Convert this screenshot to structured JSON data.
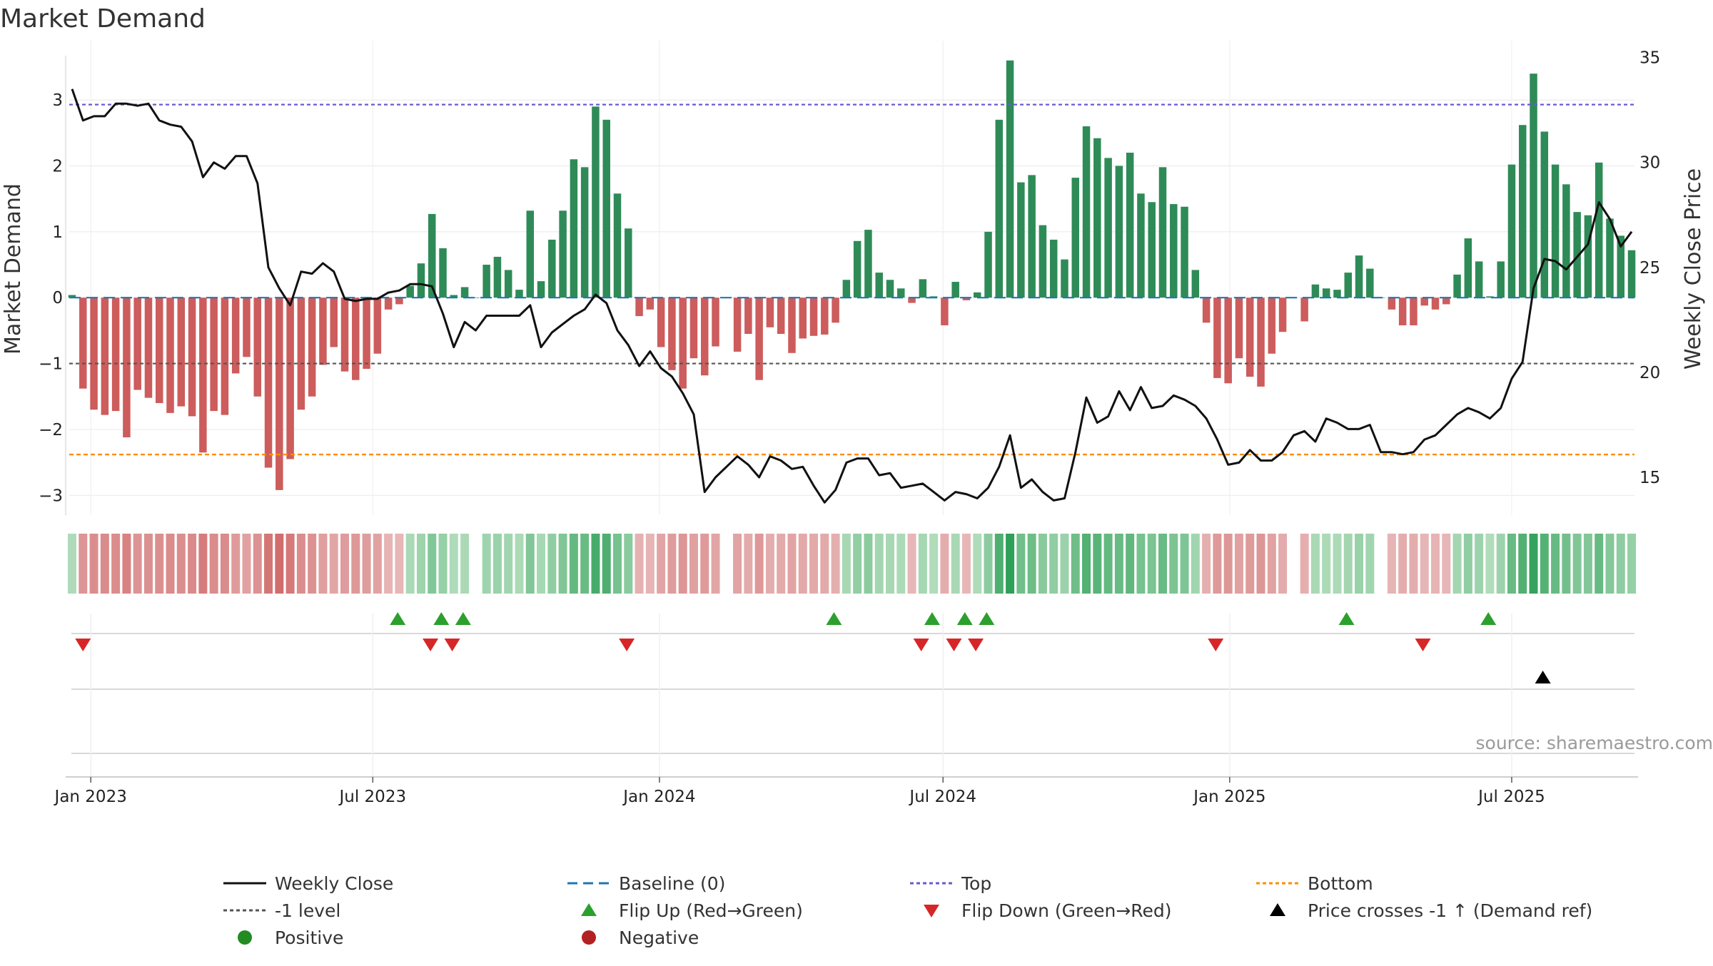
{
  "chart_data": {
    "type": "bar",
    "title": "Market Demand",
    "ylabel": "Market Demand",
    "y2label": "Weekly Close Price",
    "ylim": [
      -3.3,
      3.9
    ],
    "y2lim": [
      13.2,
      35.8
    ],
    "yticks": [
      -3,
      -2,
      -1,
      0,
      1,
      2,
      3
    ],
    "y2ticks": [
      15,
      20,
      25,
      30,
      35
    ],
    "x_start": "2022-12-20",
    "weeks_between_points": 1,
    "xticks": [
      {
        "date": "2023-01-01",
        "label": "Jan 2023"
      },
      {
        "date": "2023-07-01",
        "label": "Jul 2023"
      },
      {
        "date": "2024-01-01",
        "label": "Jan 2024"
      },
      {
        "date": "2024-07-01",
        "label": "Jul 2024"
      },
      {
        "date": "2025-01-01",
        "label": "Jan 2025"
      },
      {
        "date": "2025-07-01",
        "label": "Jul 2025"
      }
    ],
    "reference_lines": {
      "top": 2.93,
      "minus_one": -1.0,
      "bottom": -2.38,
      "baseline": 0
    },
    "series": [
      {
        "name": "Market Demand",
        "values": [
          0.04,
          -1.38,
          -1.7,
          -1.78,
          -1.72,
          -2.12,
          -1.4,
          -1.52,
          -1.6,
          -1.75,
          -1.65,
          -1.8,
          -2.35,
          -1.72,
          -1.78,
          -1.15,
          -0.9,
          -1.5,
          -2.58,
          -2.92,
          -2.45,
          -1.7,
          -1.5,
          -1.02,
          -0.75,
          -1.12,
          -1.25,
          -1.08,
          -0.85,
          -0.18,
          -0.1,
          0.18,
          0.52,
          1.27,
          0.75,
          0.04,
          0.16,
          0.0,
          0.5,
          0.62,
          0.42,
          0.12,
          1.32,
          0.25,
          0.88,
          1.32,
          2.1,
          1.98,
          2.9,
          2.7,
          1.58,
          1.05,
          -0.28,
          -0.18,
          -0.75,
          -1.1,
          -1.38,
          -0.92,
          -1.18,
          -0.74,
          0.0,
          -0.82,
          -0.55,
          -1.25,
          -0.45,
          -0.55,
          -0.84,
          -0.62,
          -0.58,
          -0.56,
          -0.38,
          0.27,
          0.86,
          1.03,
          0.38,
          0.27,
          0.14,
          -0.08,
          0.28,
          0.02,
          -0.42,
          0.24,
          -0.04,
          0.08,
          1.0,
          2.7,
          3.6,
          1.75,
          1.86,
          1.1,
          0.88,
          0.58,
          1.82,
          2.6,
          2.42,
          2.12,
          2.0,
          2.2,
          1.58,
          1.45,
          1.98,
          1.42,
          1.38,
          0.42,
          -0.38,
          -1.22,
          -1.3,
          -0.92,
          -1.2,
          -1.35,
          -0.85,
          -0.52,
          0.0,
          -0.36,
          0.2,
          0.14,
          0.12,
          0.38,
          0.64,
          0.44,
          0.0,
          -0.18,
          -0.42,
          -0.42,
          -0.12,
          -0.18,
          -0.1,
          0.35,
          0.9,
          0.55,
          0.02,
          0.55,
          2.02,
          2.62,
          3.4,
          2.52,
          2.02,
          1.72,
          1.3,
          1.25,
          2.05,
          1.2,
          0.94,
          0.72
        ]
      },
      {
        "name": "Weekly Close",
        "axis": "right",
        "values": [
          33.5,
          32.0,
          32.2,
          32.2,
          32.8,
          32.8,
          32.7,
          32.8,
          32.0,
          31.8,
          31.7,
          31.0,
          29.3,
          30.0,
          29.7,
          30.3,
          30.3,
          29.0,
          25.0,
          24.0,
          23.2,
          24.8,
          24.7,
          25.2,
          24.8,
          23.5,
          23.4,
          23.5,
          23.5,
          23.8,
          23.9,
          24.2,
          24.2,
          24.1,
          22.8,
          21.2,
          22.4,
          22.0,
          22.7,
          22.7,
          22.7,
          22.7,
          23.2,
          21.2,
          21.9,
          22.3,
          22.7,
          23.0,
          23.7,
          23.3,
          22.0,
          21.3,
          20.3,
          21.0,
          20.2,
          19.8,
          19.0,
          18.0,
          14.3,
          15.0,
          15.5,
          16.0,
          15.6,
          15.0,
          16.0,
          15.8,
          15.4,
          15.5,
          14.6,
          13.8,
          14.4,
          15.7,
          15.9,
          15.9,
          15.1,
          15.2,
          14.5,
          14.6,
          14.7,
          14.3,
          13.9,
          14.3,
          14.2,
          14.0,
          14.5,
          15.5,
          17.0,
          14.5,
          14.9,
          14.3,
          13.9,
          14.0,
          16.2,
          18.8,
          17.6,
          17.9,
          19.1,
          18.2,
          19.3,
          18.3,
          18.4,
          18.9,
          18.7,
          18.4,
          17.8,
          16.8,
          15.6,
          15.7,
          16.3,
          15.8,
          15.8,
          16.2,
          17.0,
          17.2,
          16.7,
          17.8,
          17.6,
          17.3,
          17.3,
          17.5,
          16.2,
          16.2,
          16.1,
          16.2,
          16.8,
          17.0,
          17.5,
          18.0,
          18.3,
          18.1,
          17.8,
          18.3,
          19.7,
          20.5,
          24.0,
          25.4,
          25.3,
          24.9,
          25.5,
          26.1,
          28.1,
          27.3,
          26.0,
          26.7
        ]
      }
    ],
    "flip_up": [
      "2023-07-17",
      "2023-08-14",
      "2023-08-28",
      "2024-04-22",
      "2024-06-24",
      "2024-07-15",
      "2024-07-29",
      "2025-03-17",
      "2025-06-16"
    ],
    "flip_down": [
      "2022-12-27",
      "2023-08-07",
      "2023-08-21",
      "2023-12-11",
      "2024-06-17",
      "2024-07-08",
      "2024-07-22",
      "2024-12-23",
      "2025-05-05"
    ],
    "price_crosses": [
      "2025-07-21"
    ],
    "legend": [
      {
        "label": "Weekly Close",
        "style": "line-solid",
        "color": "#111111"
      },
      {
        "label": "Baseline (0)",
        "style": "line-dash",
        "color": "#1f77b4"
      },
      {
        "label": "Top",
        "style": "line-dot",
        "color": "#6a5acd"
      },
      {
        "label": "Bottom",
        "style": "line-dot",
        "color": "#ff8c00"
      },
      {
        "label": "-1 level",
        "style": "line-dot",
        "color": "#555555"
      },
      {
        "label": "Flip Up (Red→Green)",
        "style": "tri-up",
        "color": "#2ca02c"
      },
      {
        "label": "Flip Down (Green→Red)",
        "style": "tri-down",
        "color": "#d62728"
      },
      {
        "label": "Price crosses -1 ↑ (Demand ref)",
        "style": "tri-up",
        "color": "#000000"
      },
      {
        "label": "Positive",
        "style": "dot",
        "color": "#228b22"
      },
      {
        "label": "Negative",
        "style": "dot",
        "color": "#b22222"
      }
    ],
    "colors": {
      "positive": "#2e8b57",
      "negative": "#cd5c5c",
      "close": "#111111"
    }
  },
  "source": "source: sharemaestro.com"
}
